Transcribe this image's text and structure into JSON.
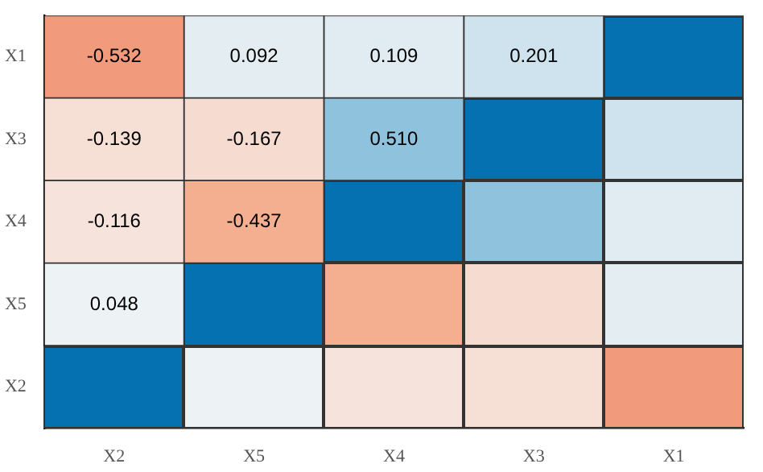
{
  "chart_data": {
    "type": "heatmap",
    "categories": [
      "X2",
      "X5",
      "X4",
      "X3",
      "X1"
    ],
    "y_categories": [
      "X1",
      "X3",
      "X4",
      "X5",
      "X2"
    ],
    "cells": [
      [
        -0.532,
        0.092,
        0.109,
        0.201,
        null
      ],
      [
        -0.139,
        -0.167,
        0.51,
        null,
        null
      ],
      [
        -0.116,
        -0.437,
        null,
        null,
        null
      ],
      [
        0.048,
        null,
        null,
        null,
        null
      ],
      [
        null,
        null,
        null,
        null,
        null
      ]
    ],
    "cell_labels": [
      [
        "-0.532",
        "0.092",
        "0.109",
        "0.201",
        null
      ],
      [
        "-0.139",
        "-0.167",
        "0.510",
        null,
        null
      ],
      [
        "-0.116",
        "-0.437",
        null,
        null,
        null
      ],
      [
        "0.048",
        null,
        null,
        null,
        null
      ],
      [
        null,
        null,
        null,
        null,
        null
      ]
    ]
  }
}
